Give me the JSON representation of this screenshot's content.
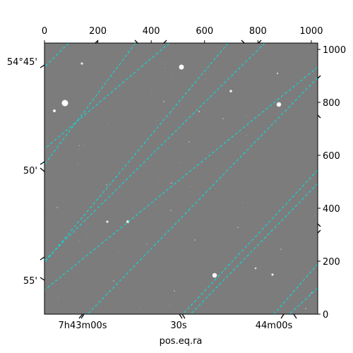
{
  "chart_data": {
    "type": "image",
    "xlabel": "pos.eq.ra",
    "ylabel": "",
    "pixel_axes": {
      "top_ticks": [
        "0",
        "200",
        "400",
        "600",
        "800",
        "1000"
      ],
      "top_values": [
        0,
        200,
        400,
        600,
        800,
        1000
      ],
      "right_ticks": [
        "0",
        "200",
        "400",
        "600",
        "800",
        "1000"
      ],
      "right_values": [
        0,
        200,
        400,
        600,
        800,
        1000
      ],
      "range": [
        0,
        1024
      ]
    },
    "world_axes": {
      "ra_ticks": [
        "7h43m00s",
        "30s",
        "44m00s"
      ],
      "dec_ticks": [
        "54°45'",
        "50'",
        "55'"
      ]
    },
    "grid": true,
    "grid_color": "#00e5e5",
    "image_background": "#7c7c7c"
  }
}
